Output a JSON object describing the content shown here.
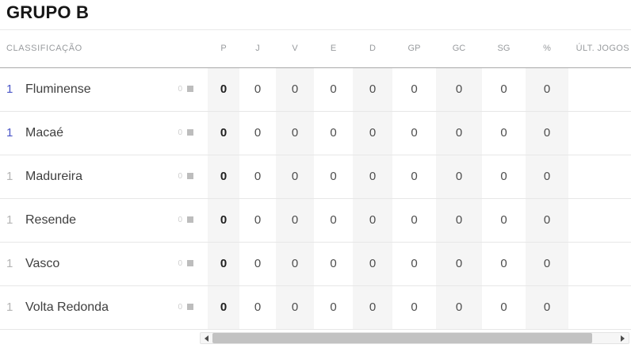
{
  "title": "GRUPO B",
  "table": {
    "first_column_label": "CLASSIFICAÇÃO",
    "stat_columns": [
      {
        "key": "p",
        "label": "P",
        "shaded": true,
        "bold": true
      },
      {
        "key": "j",
        "label": "J",
        "shaded": false,
        "bold": false
      },
      {
        "key": "v",
        "label": "V",
        "shaded": true,
        "bold": false
      },
      {
        "key": "e",
        "label": "E",
        "shaded": false,
        "bold": false
      },
      {
        "key": "d",
        "label": "D",
        "shaded": true,
        "bold": false
      },
      {
        "key": "gp",
        "label": "GP",
        "shaded": false,
        "bold": false
      },
      {
        "key": "gc",
        "label": "GC",
        "shaded": true,
        "bold": false
      },
      {
        "key": "sg",
        "label": "SG",
        "shaded": false,
        "bold": false
      },
      {
        "key": "pct",
        "label": "%",
        "shaded": true,
        "bold": false
      },
      {
        "key": "ult",
        "label": "ÚLT. JOGOS",
        "shaded": false,
        "bold": false
      }
    ],
    "rows": [
      {
        "position": "1",
        "team": "Fluminense",
        "variation": "0",
        "qualified": true,
        "stats": {
          "p": "0",
          "j": "0",
          "v": "0",
          "e": "0",
          "d": "0",
          "gp": "0",
          "gc": "0",
          "sg": "0",
          "pct": "0",
          "ult": ""
        }
      },
      {
        "position": "1",
        "team": "Macaé",
        "variation": "0",
        "qualified": true,
        "stats": {
          "p": "0",
          "j": "0",
          "v": "0",
          "e": "0",
          "d": "0",
          "gp": "0",
          "gc": "0",
          "sg": "0",
          "pct": "0",
          "ult": ""
        }
      },
      {
        "position": "1",
        "team": "Madureira",
        "variation": "0",
        "qualified": false,
        "stats": {
          "p": "0",
          "j": "0",
          "v": "0",
          "e": "0",
          "d": "0",
          "gp": "0",
          "gc": "0",
          "sg": "0",
          "pct": "0",
          "ult": ""
        }
      },
      {
        "position": "1",
        "team": "Resende",
        "variation": "0",
        "qualified": false,
        "stats": {
          "p": "0",
          "j": "0",
          "v": "0",
          "e": "0",
          "d": "0",
          "gp": "0",
          "gc": "0",
          "sg": "0",
          "pct": "0",
          "ult": ""
        }
      },
      {
        "position": "1",
        "team": "Vasco",
        "variation": "0",
        "qualified": false,
        "stats": {
          "p": "0",
          "j": "0",
          "v": "0",
          "e": "0",
          "d": "0",
          "gp": "0",
          "gc": "0",
          "sg": "0",
          "pct": "0",
          "ult": ""
        }
      },
      {
        "position": "1",
        "team": "Volta Redonda",
        "variation": "0",
        "qualified": false,
        "stats": {
          "p": "0",
          "j": "0",
          "v": "0",
          "e": "0",
          "d": "0",
          "gp": "0",
          "gc": "0",
          "sg": "0",
          "pct": "0",
          "ult": ""
        }
      }
    ]
  },
  "colors": {
    "position_qualified": "#4a55c7",
    "position_muted": "#b4b4b4",
    "shaded_column_bg": "#f5f5f5",
    "header_text": "#989b9e",
    "team_text": "#404040",
    "scrollbar_thumb": "#c2c2c2"
  }
}
